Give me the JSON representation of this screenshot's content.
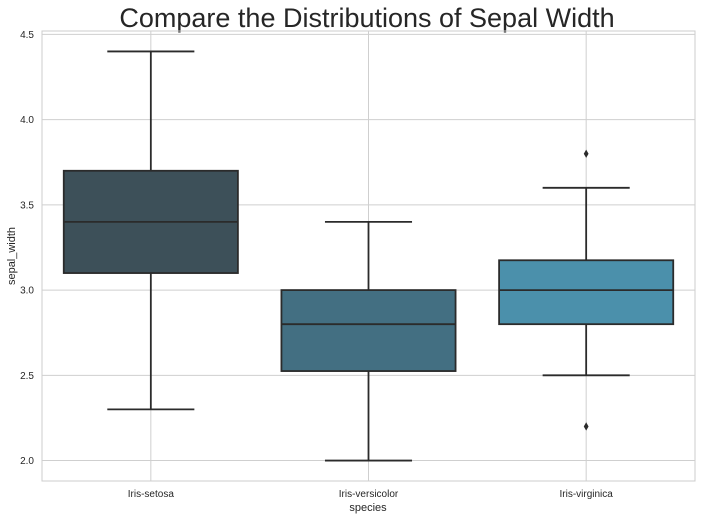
{
  "chart_data": {
    "type": "box",
    "title": "Compare the Distributions of Sepal Width",
    "xlabel": "species",
    "ylabel": "sepal_width",
    "ylim": [
      1.88,
      4.52
    ],
    "yticks": [
      "2.0",
      "2.5",
      "3.0",
      "3.5",
      "4.0",
      "4.5"
    ],
    "grid": true,
    "categories": [
      "Iris-setosa",
      "Iris-versicolor",
      "Iris-virginica"
    ],
    "boxes": [
      {
        "category": "Iris-setosa",
        "whisker_low": 2.3,
        "q1": 3.1,
        "median": 3.4,
        "q3": 3.7,
        "whisker_high": 4.4,
        "outliers": [],
        "color": "#3d5059"
      },
      {
        "category": "Iris-versicolor",
        "whisker_low": 2.0,
        "q1": 2.525,
        "median": 2.8,
        "q3": 3.0,
        "whisker_high": 3.4,
        "outliers": [],
        "color": "#436f82"
      },
      {
        "category": "Iris-virginica",
        "whisker_low": 2.5,
        "q1": 2.8,
        "median": 3.0,
        "q3": 3.175,
        "whisker_high": 3.6,
        "outliers": [
          2.2,
          3.8
        ],
        "color": "#4b90ab"
      }
    ]
  }
}
